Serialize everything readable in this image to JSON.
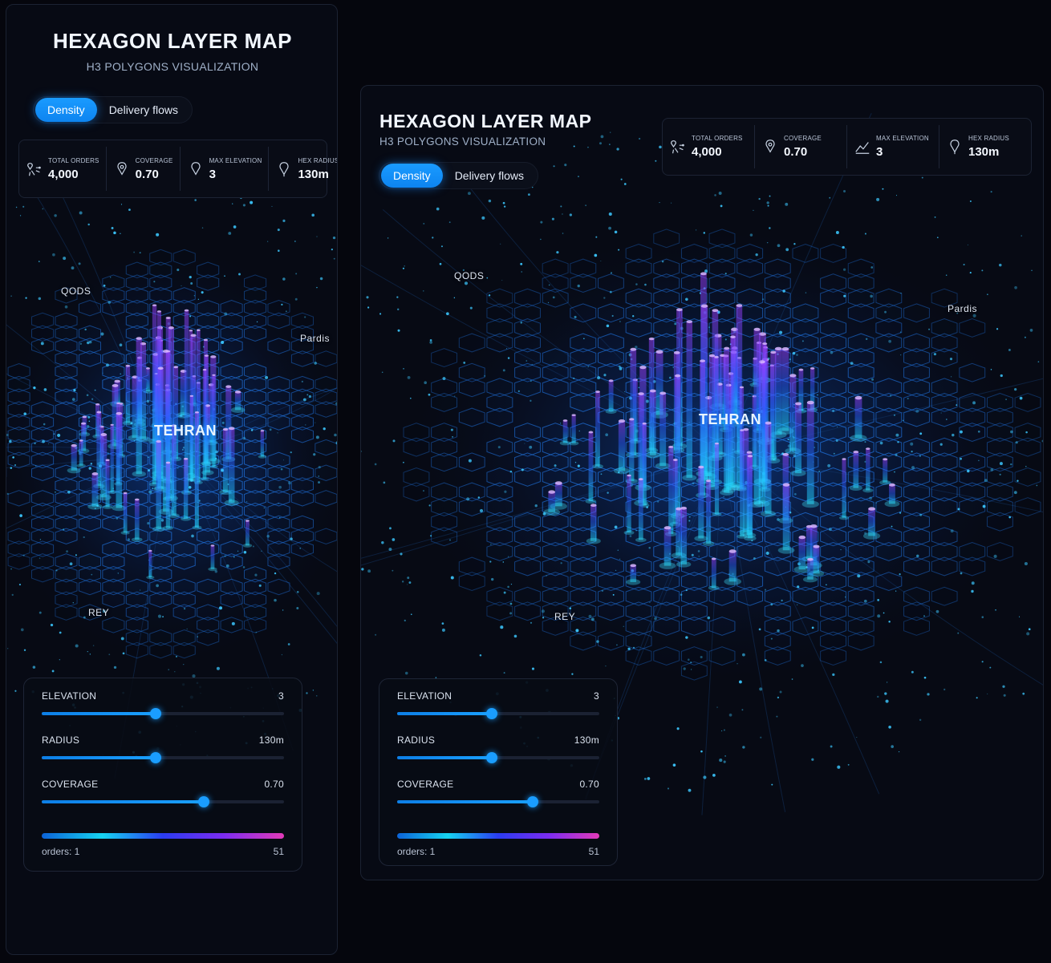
{
  "header": {
    "title": "HEXAGON LAYER MAP",
    "subtitle": "H3 POLYGONS VISUALIZATION"
  },
  "tabs": [
    {
      "label": "Density",
      "active": true
    },
    {
      "label": "Delivery flows",
      "active": false
    }
  ],
  "stats": [
    {
      "label": "TOTAL ORDERS",
      "value": "4,000",
      "icon": "network-pin-icon"
    },
    {
      "label": "COVERAGE",
      "value": "0.70",
      "icon": "location-pin-icon"
    },
    {
      "label": "MAX ELEVATION",
      "value": "3",
      "icon": "elevation-chart-icon"
    },
    {
      "label": "HEX RADIUS",
      "value": "130m",
      "icon": "radius-pin-icon"
    }
  ],
  "map": {
    "cities": {
      "qods": "QODS",
      "pardis": "Pardis",
      "tehran": "TEHRAN",
      "rey": "REY"
    }
  },
  "controls": {
    "elevation": {
      "label": "ELEVATION",
      "value": "3",
      "fraction": 0.47
    },
    "radius": {
      "label": "RADIUS",
      "value": "130m",
      "fraction": 0.47
    },
    "coverage": {
      "label": "COVERAGE",
      "value": "0.70",
      "fraction": 0.67
    },
    "legend": {
      "min_label": "orders: 1",
      "max_label": "51",
      "colors": [
        "#0c63d8",
        "#16d4f0",
        "#2a3cf0",
        "#7b2cf0",
        "#e23ab8"
      ]
    }
  },
  "colors": {
    "accent": "#1a9bff",
    "hex_edge": "#1f6fd8",
    "dot": "#3cc8ff",
    "column_low": "#1ee0ff",
    "column_high": "#a23cff"
  }
}
